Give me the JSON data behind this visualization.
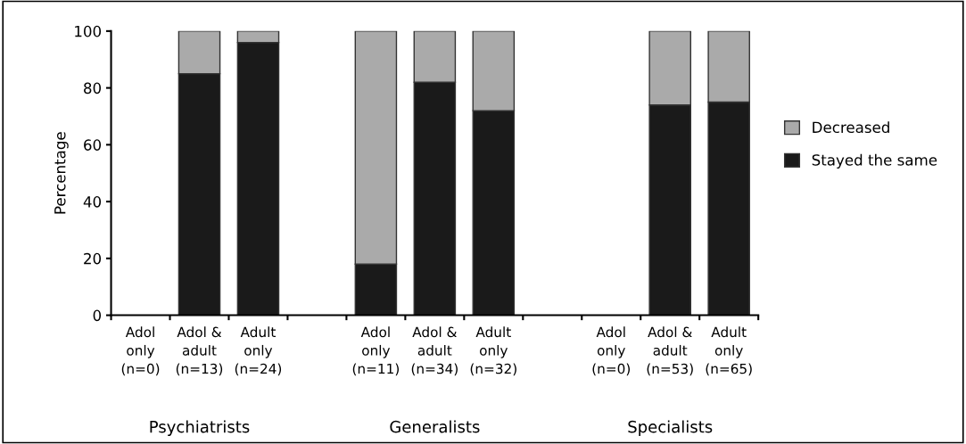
{
  "chart_data": {
    "type": "bar",
    "stacked": true,
    "ylabel": "Percentage",
    "categories": [
      "Adol\nonly\n(n=0)",
      "Adol &\nadult\n(n=13)",
      "Adult\nonly\n(n=24)",
      null,
      "Adol\nonly\n(n=11)",
      "Adol &\nadult\n(n=34)",
      "Adult\nonly\n(n=32)",
      null,
      "Adol\nonly\n(n=0)",
      "Adol &\nadult\n(n=53)",
      "Adult\nonly\n(n=65)"
    ],
    "series": [
      {
        "name": "Stayed the same",
        "color": "#1a1a1a",
        "values": [
          null,
          85,
          96,
          null,
          18,
          82,
          72,
          null,
          null,
          74,
          75
        ]
      },
      {
        "name": "Decreased",
        "color": "#aaaaaa",
        "values": [
          null,
          15,
          4,
          null,
          82,
          18,
          28,
          null,
          null,
          26,
          25
        ]
      }
    ],
    "annotations": [
      "Psychiatrists",
      "Generalists",
      "Specialists"
    ],
    "ylim": [
      0,
      100
    ],
    "yticks": [
      0,
      20,
      40,
      60,
      80,
      100
    ],
    "grid": false,
    "legend": "right"
  }
}
